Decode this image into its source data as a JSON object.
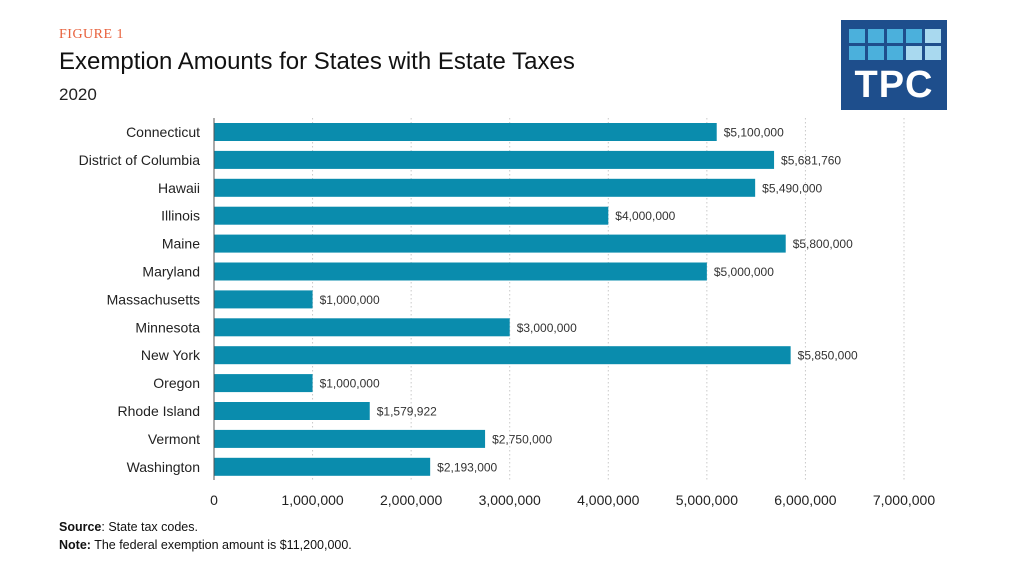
{
  "header": {
    "figure_label": "FIGURE 1",
    "title": "Exemption Amounts for States with Estate Taxes",
    "subtitle": "2020"
  },
  "logo": {
    "text": "TPC",
    "color": "#1e4e8c",
    "accent": "#4bb0dc"
  },
  "footnotes": {
    "source_label": "Source",
    "source_text": ": State tax codes.",
    "note_label": "Note:",
    "note_text": " The federal exemption amount is $11,200,000."
  },
  "chart_data": {
    "type": "bar",
    "orientation": "horizontal",
    "categories": [
      "Connecticut",
      "District of Columbia",
      "Hawaii",
      "Illinois",
      "Maine",
      "Maryland",
      "Massachusetts",
      "Minnesota",
      "New York",
      "Oregon",
      "Rhode Island",
      "Vermont",
      "Washington"
    ],
    "values": [
      5100000,
      5681760,
      5490000,
      4000000,
      5800000,
      5000000,
      1000000,
      3000000,
      5850000,
      1000000,
      1579922,
      2750000,
      2193000
    ],
    "value_labels": [
      "$5,100,000",
      "$5,681,760",
      "$5,490,000",
      "$4,000,000",
      "$5,800,000",
      "$5,000,000",
      "$1,000,000",
      "$3,000,000",
      "$5,850,000",
      "$1,000,000",
      "$1,579,922",
      "$2,750,000",
      "$2,193,000"
    ],
    "xlim": [
      0,
      7000000
    ],
    "xticks": [
      0,
      1000000,
      2000000,
      3000000,
      4000000,
      5000000,
      6000000,
      7000000
    ],
    "xtick_labels": [
      "0",
      "1,000,000",
      "2,000,000",
      "3,000,000",
      "4,000,000",
      "5,000,000",
      "6,000,000",
      "7,000,000"
    ],
    "grid": "vertical dotted",
    "bar_color": "#0a8cad"
  }
}
